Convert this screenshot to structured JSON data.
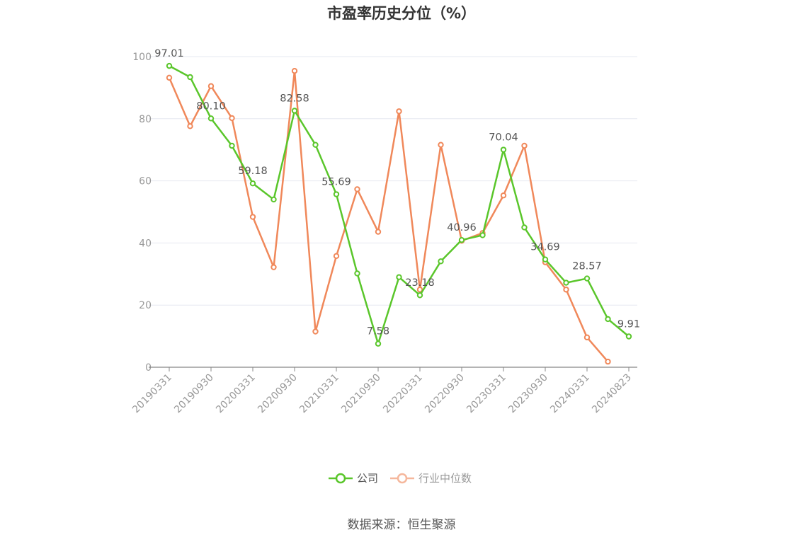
{
  "chart_data": {
    "type": "line",
    "title": "市盈率历史分位（%）",
    "ylim": [
      0,
      100
    ],
    "yticks": [
      0,
      20,
      40,
      60,
      80,
      100
    ],
    "xtick_labels": [
      "20190331",
      "20190930",
      "20200331",
      "20200930",
      "20210331",
      "20210930",
      "20220331",
      "20220930",
      "20230331",
      "20230930",
      "20240331",
      "20240823"
    ],
    "xtick_indices": [
      0,
      2,
      4,
      6,
      8,
      10,
      12,
      14,
      16,
      18,
      20,
      22
    ],
    "x": [
      "20190331",
      "20190630",
      "20190930",
      "20191231",
      "20200331",
      "20200630",
      "20200930",
      "20201231",
      "20210331",
      "20210630",
      "20210930",
      "20211231",
      "20220331",
      "20220630",
      "20220930",
      "20221231",
      "20230331",
      "20230630",
      "20230930",
      "20231231",
      "20240331",
      "20240630",
      "20240823"
    ],
    "series": [
      {
        "name": "公司",
        "color": "#5ac62b",
        "values": [
          97.01,
          93.4,
          80.1,
          71.3,
          59.18,
          54.0,
          82.58,
          71.6,
          55.69,
          30.2,
          7.58,
          29.0,
          23.18,
          34.1,
          40.96,
          42.5,
          70.04,
          45.0,
          34.69,
          27.2,
          28.57,
          15.5,
          9.91
        ],
        "labeled": [
          0,
          2,
          4,
          6,
          8,
          10,
          12,
          14,
          16,
          18,
          20,
          22
        ]
      },
      {
        "name": "行业中位数",
        "color": "#f0885a",
        "values": [
          93.2,
          77.6,
          90.5,
          80.2,
          48.4,
          32.2,
          95.4,
          11.5,
          35.8,
          57.3,
          43.6,
          82.4,
          25.0,
          71.6,
          40.7,
          43.2,
          55.3,
          71.3,
          33.8,
          25.0,
          9.6,
          1.8,
          null
        ]
      }
    ],
    "grid": true,
    "legend_position": "bottom"
  },
  "source_text": "数据来源：恒生聚源"
}
